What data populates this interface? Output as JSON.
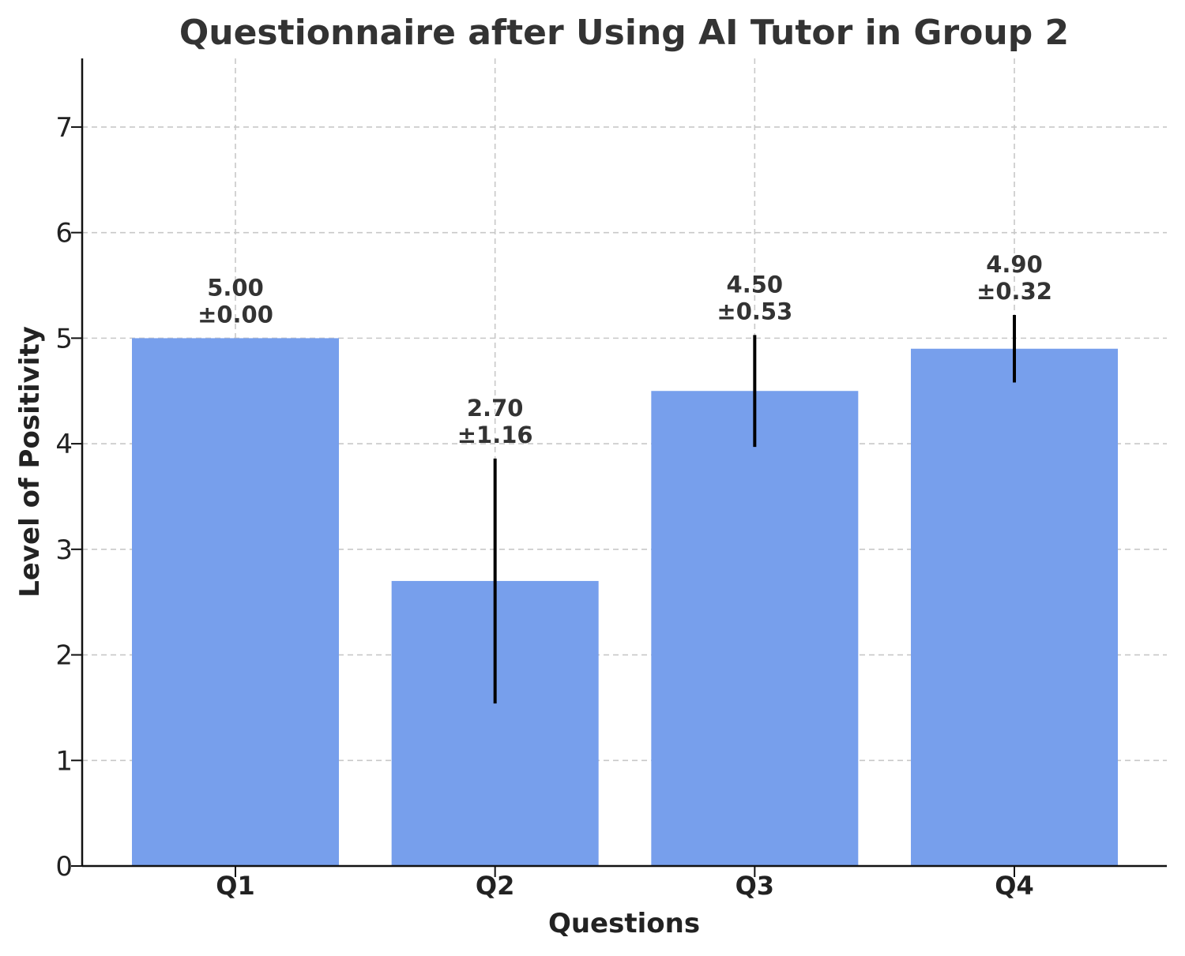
{
  "chart_data": {
    "type": "bar",
    "title": "Questionnaire after Using AI Tutor in Group 2",
    "xlabel": "Questions",
    "ylabel": "Level of Positivity",
    "categories": [
      "Q1",
      "Q2",
      "Q3",
      "Q4"
    ],
    "values": [
      5.0,
      2.7,
      4.5,
      4.9
    ],
    "errors": [
      0.0,
      1.16,
      0.53,
      0.32
    ],
    "labels": [
      {
        "value": "5.00",
        "error": "±0.00"
      },
      {
        "value": "2.70",
        "error": "±1.16"
      },
      {
        "value": "4.50",
        "error": "±0.53"
      },
      {
        "value": "4.90",
        "error": "±0.32"
      }
    ],
    "yticks": [
      0,
      1,
      2,
      3,
      4,
      5,
      6,
      7
    ],
    "ylim": [
      0,
      7.65
    ],
    "grid": true,
    "bar_color": "#779fec",
    "error_color": "#000000"
  }
}
